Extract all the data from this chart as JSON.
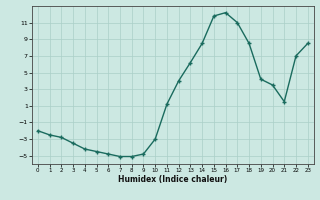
{
  "x": [
    0,
    1,
    2,
    3,
    4,
    5,
    6,
    7,
    8,
    9,
    10,
    11,
    12,
    13,
    14,
    15,
    16,
    17,
    18,
    19,
    20,
    21,
    22,
    23
  ],
  "y": [
    -2.0,
    -2.5,
    -2.8,
    -3.5,
    -4.2,
    -4.5,
    -4.8,
    -5.1,
    -5.1,
    -4.8,
    -3.0,
    1.2,
    4.0,
    6.2,
    8.5,
    11.8,
    12.2,
    11.0,
    8.5,
    4.2,
    3.5,
    1.5,
    7.0,
    8.5
  ],
  "xlabel": "Humidex (Indice chaleur)",
  "line_color": "#1a6b5e",
  "bg_color": "#cce8e2",
  "grid_color": "#aacfc8",
  "ylim": [
    -6,
    13
  ],
  "xlim": [
    -0.5,
    23.5
  ],
  "yticks": [
    -5,
    -3,
    -1,
    1,
    3,
    5,
    7,
    9,
    11
  ],
  "xticks": [
    0,
    1,
    2,
    3,
    4,
    5,
    6,
    7,
    8,
    9,
    10,
    11,
    12,
    13,
    14,
    15,
    16,
    17,
    18,
    19,
    20,
    21,
    22,
    23
  ]
}
